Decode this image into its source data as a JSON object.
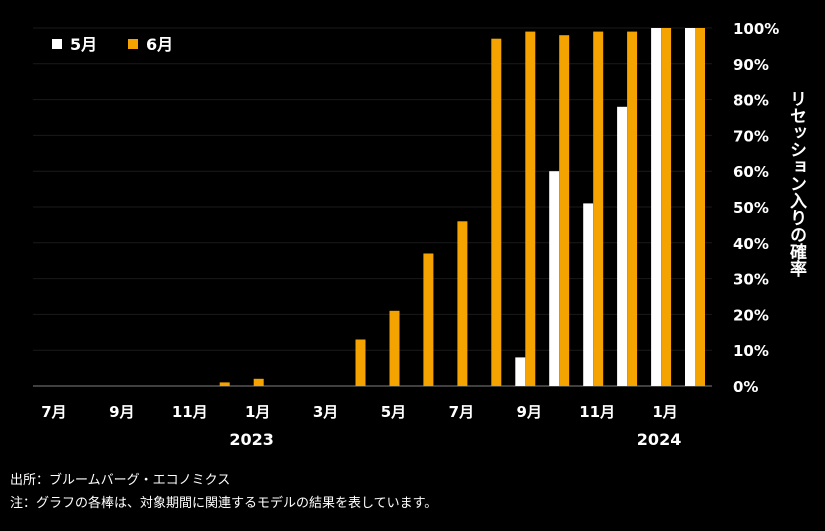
{
  "chart_data": {
    "type": "bar",
    "ylabel": "リセッション入りの確率",
    "ylim": [
      0,
      100
    ],
    "y_ticks": [
      "0%",
      "10%",
      "20%",
      "30%",
      "40%",
      "50%",
      "60%",
      "70%",
      "80%",
      "90%",
      "100%"
    ],
    "categories": [
      "2022-07",
      "2022-08",
      "2022-09",
      "2022-10",
      "2022-11",
      "2022-12",
      "2023-01",
      "2023-02",
      "2023-03",
      "2023-04",
      "2023-05",
      "2023-06",
      "2023-07",
      "2023-08",
      "2023-09",
      "2023-10",
      "2023-11",
      "2023-12",
      "2024-01",
      "2024-02"
    ],
    "x_tick_labels": [
      {
        "index": 0,
        "label": "7月"
      },
      {
        "index": 2,
        "label": "9月"
      },
      {
        "index": 4,
        "label": "11月"
      },
      {
        "index": 6,
        "label": "1月"
      },
      {
        "index": 8,
        "label": "3月"
      },
      {
        "index": 10,
        "label": "5月"
      },
      {
        "index": 12,
        "label": "7月"
      },
      {
        "index": 14,
        "label": "9月"
      },
      {
        "index": 16,
        "label": "11月"
      },
      {
        "index": 18,
        "label": "1月"
      }
    ],
    "year_labels": [
      {
        "index": 6,
        "label": "2023"
      },
      {
        "index": 18,
        "label": "2024"
      }
    ],
    "series": [
      {
        "name": "5月",
        "color": "#ffffff",
        "values": [
          0,
          0,
          0,
          0,
          0,
          0,
          0,
          0,
          0,
          0,
          0,
          0,
          0,
          0,
          8,
          60,
          51,
          78,
          100,
          100
        ]
      },
      {
        "name": "6月",
        "color": "#f5a300",
        "values": [
          0,
          0,
          0,
          0,
          0,
          1,
          2,
          0,
          0,
          13,
          21,
          37,
          46,
          97,
          99,
          98,
          99,
          99,
          100,
          100
        ]
      }
    ]
  },
  "footer": {
    "source": "出所：ブルームバーグ・エコノミクス",
    "note": "注：グラフの各棒は、対象期間に関連するモデルの結果を表しています。"
  }
}
